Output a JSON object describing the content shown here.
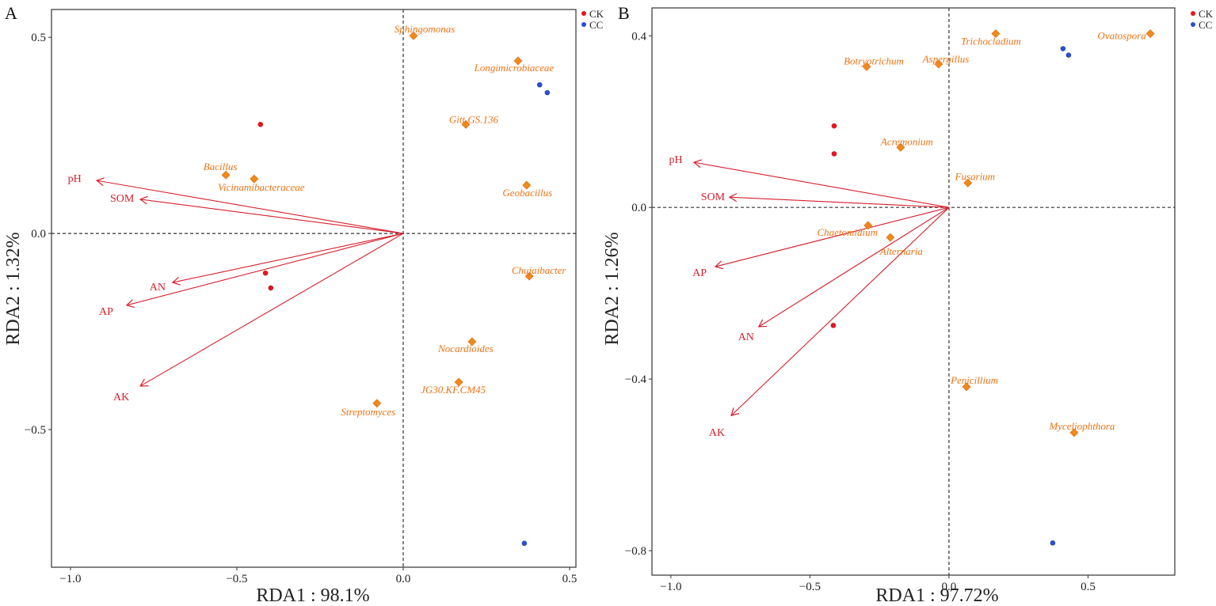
{
  "chart_data": [
    {
      "type": "scatter",
      "panel": "A",
      "xlabel": "RDA1 : 98.1%",
      "ylabel": "RDA2 : 1.32%",
      "xlim": [
        -1.057,
        0.519
      ],
      "ylim": [
        -0.851,
        0.571
      ],
      "xticks": [
        -1.0,
        -0.5,
        0.0,
        0.5
      ],
      "xtick_labels": [
        "−1.0",
        "−0.5",
        "0.0",
        "0.5"
      ],
      "yticks": [
        0.5,
        0.0,
        -0.5
      ],
      "ytick_labels": [
        "0.5",
        "0.0",
        "−0.5"
      ],
      "legend": [
        {
          "name": "CK",
          "color": "#e8141c"
        },
        {
          "name": "CC",
          "color": "#2a4fcf"
        }
      ],
      "legend_position": "outside-top-right",
      "env_arrows": [
        {
          "name": "pH",
          "x": -0.921,
          "y": 0.135
        },
        {
          "name": "SOM",
          "x": -0.79,
          "y": 0.087
        },
        {
          "name": "AN",
          "x": -0.693,
          "y": -0.125
        },
        {
          "name": "AP",
          "x": -0.831,
          "y": -0.183
        },
        {
          "name": "AK",
          "x": -0.79,
          "y": -0.389
        }
      ],
      "species": [
        {
          "name": "Sphingomonas",
          "x": 0.031,
          "y": 0.504
        },
        {
          "name": "Longimicrobiaceae",
          "x": 0.345,
          "y": 0.44
        },
        {
          "name": "Gitt.GS.136",
          "x": 0.188,
          "y": 0.278
        },
        {
          "name": "Bacillus",
          "x": -0.533,
          "y": 0.149
        },
        {
          "name": "Vicinamibacteraceae",
          "x": -0.448,
          "y": 0.139
        },
        {
          "name": "Geobacillus",
          "x": 0.371,
          "y": 0.123
        },
        {
          "name": "Chujaibacter",
          "x": 0.379,
          "y": -0.109
        },
        {
          "name": "Nocardioides",
          "x": 0.207,
          "y": -0.276
        },
        {
          "name": "JG30.KF.CM45",
          "x": 0.167,
          "y": -0.379
        },
        {
          "name": "Streptomyces",
          "x": -0.079,
          "y": -0.433
        }
      ],
      "samples": [
        {
          "group": "CK",
          "x": -0.429,
          "y": 0.278
        },
        {
          "group": "CK",
          "x": -0.414,
          "y": -0.101
        },
        {
          "group": "CK",
          "x": -0.398,
          "y": -0.139
        },
        {
          "group": "CC",
          "x": 0.41,
          "y": 0.379
        },
        {
          "group": "CC",
          "x": 0.433,
          "y": 0.359
        },
        {
          "group": "CC",
          "x": 0.364,
          "y": -0.79
        }
      ]
    },
    {
      "type": "scatter",
      "panel": "B",
      "xlabel": "RDA1 : 97.72%",
      "ylabel": "RDA2 : 1.26%",
      "xlim": [
        -1.068,
        0.812
      ],
      "ylim": [
        -0.857,
        0.465
      ],
      "xticks": [
        -1.0,
        -0.5,
        0.0,
        0.5
      ],
      "xtick_labels": [
        "−1.0",
        "−0.5",
        "0.0",
        "0.5"
      ],
      "yticks": [
        0.4,
        0.0,
        -0.4,
        -0.8
      ],
      "ytick_labels": [
        "0.4",
        "0.0",
        "−0.4",
        "−0.8"
      ],
      "legend": [
        {
          "name": "CK",
          "color": "#e8141c"
        },
        {
          "name": "CC",
          "color": "#2a4fcf"
        }
      ],
      "legend_position": "outside-top-right",
      "env_arrows": [
        {
          "name": "pH",
          "x": -0.917,
          "y": 0.105
        },
        {
          "name": "SOM",
          "x": -0.789,
          "y": 0.024
        },
        {
          "name": "AP",
          "x": -0.84,
          "y": -0.138
        },
        {
          "name": "AN",
          "x": -0.684,
          "y": -0.278
        },
        {
          "name": "AK",
          "x": -0.783,
          "y": -0.485
        }
      ],
      "species": [
        {
          "name": "Trichocladium",
          "x": 0.168,
          "y": 0.405
        },
        {
          "name": "Ovatospora",
          "x": 0.724,
          "y": 0.405
        },
        {
          "name": "Botryotrichum",
          "x": -0.296,
          "y": 0.328
        },
        {
          "name": "Aspergillus",
          "x": -0.037,
          "y": 0.334
        },
        {
          "name": "Acremonium",
          "x": -0.174,
          "y": 0.14
        },
        {
          "name": "Fusarium",
          "x": 0.068,
          "y": 0.057
        },
        {
          "name": "Chaetomidium",
          "x": -0.291,
          "y": -0.042
        },
        {
          "name": "Alternaria",
          "x": -0.211,
          "y": -0.07
        },
        {
          "name": "Penicillium",
          "x": 0.063,
          "y": -0.418
        },
        {
          "name": "Myceliophthora",
          "x": 0.45,
          "y": -0.525
        }
      ],
      "samples": [
        {
          "group": "CK",
          "x": -0.413,
          "y": 0.19
        },
        {
          "group": "CK",
          "x": -0.413,
          "y": 0.125
        },
        {
          "group": "CK",
          "x": -0.416,
          "y": -0.275
        },
        {
          "group": "CC",
          "x": 0.41,
          "y": 0.37
        },
        {
          "group": "CC",
          "x": 0.43,
          "y": 0.355
        },
        {
          "group": "CC",
          "x": 0.373,
          "y": -0.782
        }
      ]
    }
  ],
  "colors": {
    "arrow": "#d6202c",
    "species": "#ee7214",
    "species_marker": "#f08a1c"
  }
}
